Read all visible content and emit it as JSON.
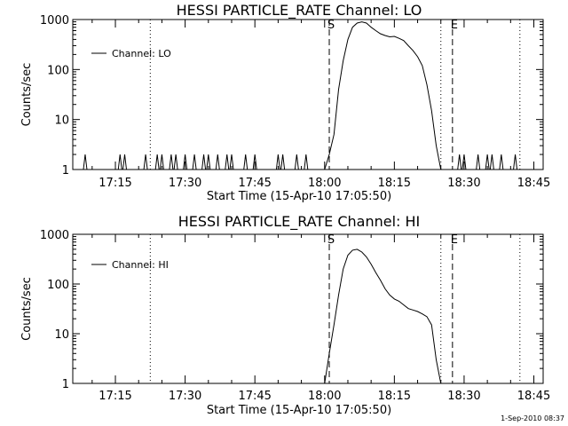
{
  "footer": {
    "timestamp": "1-Sep-2010 08:37"
  },
  "chart_data": [
    {
      "type": "line",
      "title": "HESSI PARTICLE_RATE Channel: LO",
      "xlabel": "Start Time (15-Apr-10 17:05:50)",
      "ylabel": "Counts/sec",
      "y_scale": "log",
      "ylim": [
        1,
        1000
      ],
      "y_ticks": [
        "1",
        "10",
        "100",
        "1000"
      ],
      "xlim": [
        "17:05:50",
        "18:47:00"
      ],
      "x_ticks": [
        "17:15",
        "17:30",
        "17:45",
        "18:00",
        "18:15",
        "18:30",
        "18:45"
      ],
      "grid": false,
      "legend_position": "top-left",
      "series": [
        {
          "name": "Channel: LO",
          "x": [
            "18:00:00",
            "18:01:00",
            "18:02:00",
            "18:03:00",
            "18:04:00",
            "18:05:00",
            "18:06:00",
            "18:07:00",
            "18:08:00",
            "18:09:00",
            "18:10:00",
            "18:11:00",
            "18:12:00",
            "18:13:00",
            "18:14:00",
            "18:15:00",
            "18:16:00",
            "18:17:00",
            "18:18:00",
            "18:19:00",
            "18:20:00",
            "18:21:00",
            "18:22:00",
            "18:23:00",
            "18:24:00",
            "18:25:00",
            "18:26:00",
            "18:27:00",
            "18:28:00"
          ],
          "y": [
            1,
            2,
            5,
            40,
            150,
            400,
            700,
            850,
            900,
            850,
            700,
            600,
            520,
            480,
            450,
            460,
            420,
            380,
            300,
            240,
            180,
            120,
            50,
            15,
            3,
            1,
            1,
            1,
            1
          ]
        }
      ],
      "spike_times": [
        "17:08:30",
        "17:16:00",
        "17:17:00",
        "17:21:30",
        "17:24:00",
        "17:25:00",
        "17:27:00",
        "17:28:00",
        "17:30:00",
        "17:32:00",
        "17:34:00",
        "17:35:00",
        "17:37:00",
        "17:39:00",
        "17:40:00",
        "17:43:00",
        "17:45:00",
        "17:50:00",
        "17:51:00",
        "17:54:00",
        "17:56:00",
        "18:29:00",
        "18:30:00",
        "18:33:00",
        "18:35:00",
        "18:36:00",
        "18:38:00",
        "18:41:00"
      ],
      "spike_value": 2,
      "vlines": [
        {
          "label": "",
          "time": "17:22:30",
          "style": "dotted"
        },
        {
          "label": "S",
          "time": "18:01:00",
          "style": "dashed"
        },
        {
          "label": "",
          "time": "18:25:00",
          "style": "dotted"
        },
        {
          "label": "E",
          "time": "18:27:30",
          "style": "dashed"
        },
        {
          "label": "",
          "time": "18:42:00",
          "style": "dotted"
        }
      ]
    },
    {
      "type": "line",
      "title": "HESSI PARTICLE_RATE Channel: HI",
      "xlabel": "Start Time (15-Apr-10 17:05:50)",
      "ylabel": "Counts/sec",
      "y_scale": "log",
      "ylim": [
        1,
        1000
      ],
      "y_ticks": [
        "1",
        "10",
        "100",
        "1000"
      ],
      "xlim": [
        "17:05:50",
        "18:47:00"
      ],
      "x_ticks": [
        "17:15",
        "17:30",
        "17:45",
        "18:00",
        "18:15",
        "18:30",
        "18:45"
      ],
      "grid": false,
      "legend_position": "top-left",
      "series": [
        {
          "name": "Channel: HI",
          "x": [
            "18:00:00",
            "18:01:00",
            "18:02:00",
            "18:03:00",
            "18:04:00",
            "18:05:00",
            "18:06:00",
            "18:07:00",
            "18:08:00",
            "18:09:00",
            "18:10:00",
            "18:11:00",
            "18:12:00",
            "18:13:00",
            "18:14:00",
            "18:15:00",
            "18:16:00",
            "18:17:00",
            "18:18:00",
            "18:19:00",
            "18:20:00",
            "18:21:00",
            "18:22:00",
            "18:23:00",
            "18:24:00",
            "18:25:00"
          ],
          "y": [
            1,
            4,
            15,
            60,
            200,
            380,
            480,
            500,
            440,
            350,
            250,
            170,
            120,
            80,
            60,
            50,
            45,
            38,
            32,
            30,
            28,
            25,
            22,
            15,
            3,
            1
          ]
        }
      ],
      "spike_times": [],
      "spike_value": 2,
      "vlines": [
        {
          "label": "",
          "time": "17:22:30",
          "style": "dotted"
        },
        {
          "label": "S",
          "time": "18:01:00",
          "style": "dashed"
        },
        {
          "label": "",
          "time": "18:25:00",
          "style": "dotted"
        },
        {
          "label": "E",
          "time": "18:27:30",
          "style": "dashed"
        },
        {
          "label": "",
          "time": "18:42:00",
          "style": "dotted"
        }
      ]
    }
  ]
}
